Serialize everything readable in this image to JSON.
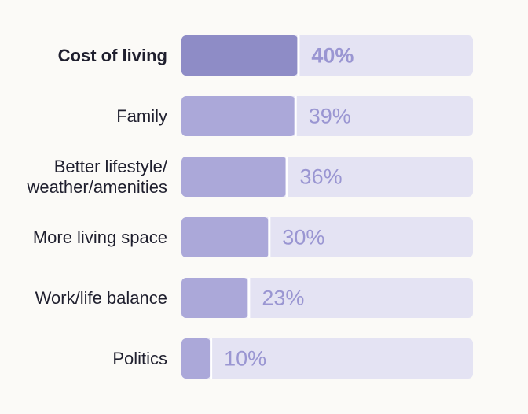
{
  "chart_data": {
    "type": "bar",
    "orientation": "horizontal",
    "categories": [
      [
        "Cost of living"
      ],
      [
        "Family"
      ],
      [
        "Better lifestyle/",
        "weather/amenities"
      ],
      [
        "More living space"
      ],
      [
        "Work/life balance"
      ],
      [
        "Politics"
      ]
    ],
    "values": [
      40,
      39,
      36,
      30,
      23,
      10
    ],
    "value_labels": [
      "40%",
      "39%",
      "36%",
      "30%",
      "23%",
      "10%"
    ],
    "highlight_index": 0,
    "xlim": [
      0,
      100
    ],
    "title": "",
    "xlabel": "",
    "ylabel": "",
    "grid": false,
    "legend": "none",
    "colors": {
      "highlight_bar": "#8e8cc6",
      "bar": "#aba8d9",
      "track": "#e4e3f3",
      "value_text": "#9a96d2",
      "label_text": "#1f1f2e",
      "background": "#fbfaf7"
    }
  }
}
